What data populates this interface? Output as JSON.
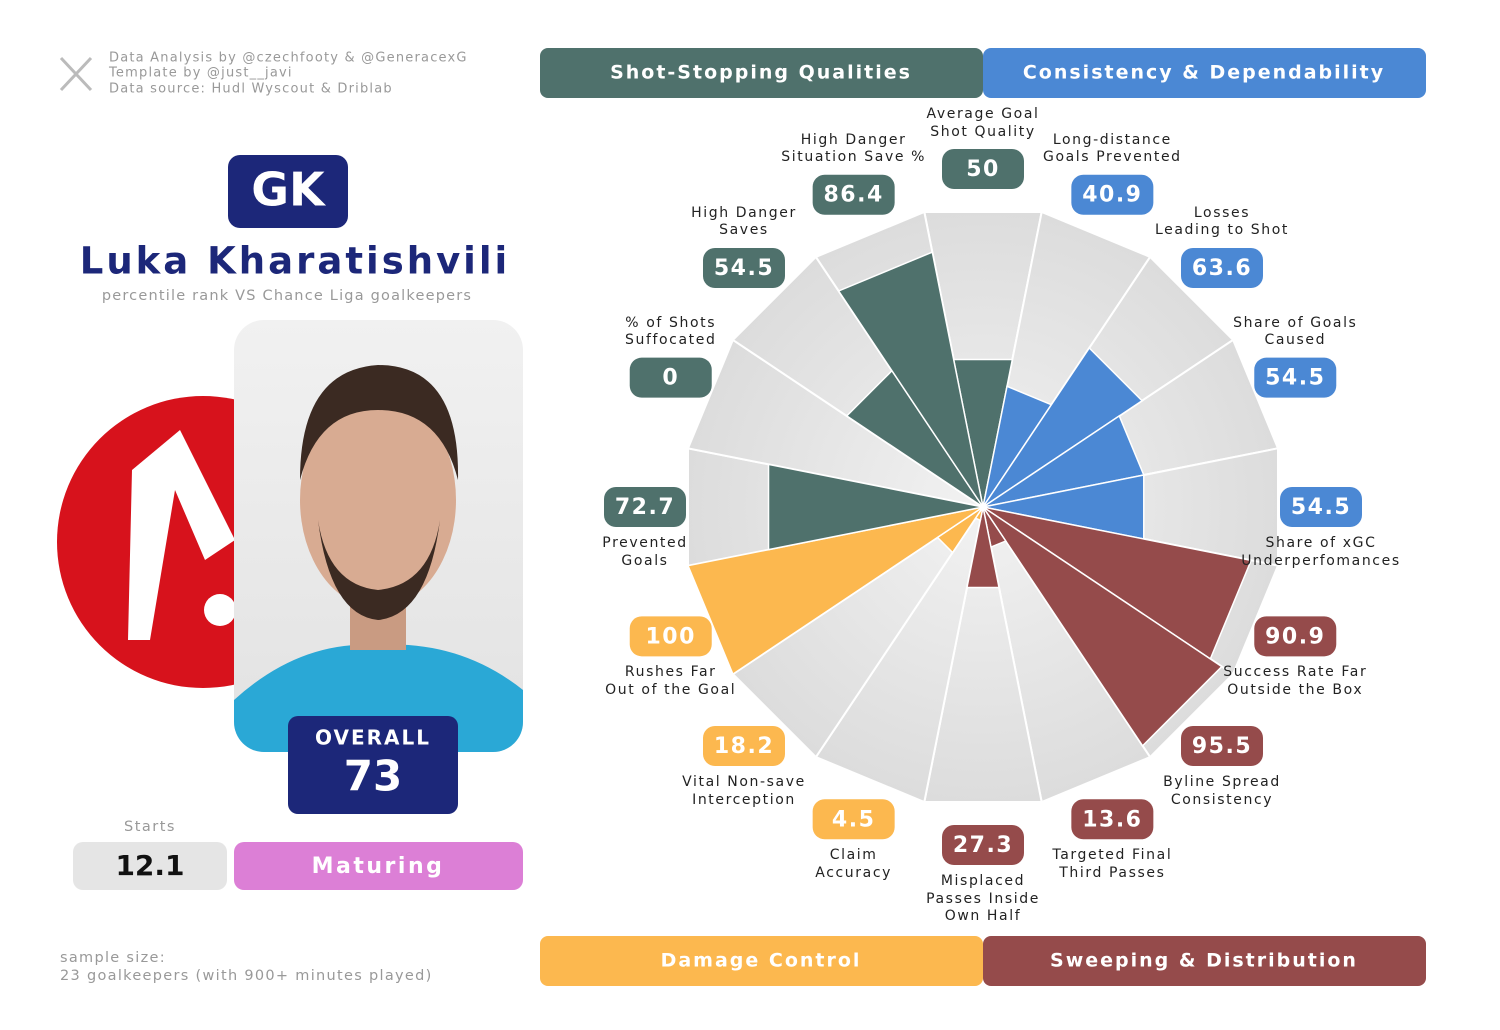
{
  "credits": {
    "lines": [
      "Data Analysis by @czechfooty & @GeneracexG",
      "Template by @just__javi",
      "Data source: Hudl Wyscout & Driblab"
    ]
  },
  "player": {
    "position": "GK",
    "name": "Luka Kharatishvili",
    "subtitle": "percentile rank VS Chance Liga goalkeepers",
    "overall_label": "OVERALL",
    "overall": 73,
    "starts_label": "Starts",
    "starts": 12.1,
    "stage": "Maturing"
  },
  "footer": {
    "lines": [
      "sample size:",
      "23 goalkeepers (with 900+ minutes played)"
    ]
  },
  "chart_data": {
    "type": "pizza",
    "groups": [
      {
        "name": "Shot-Stopping Qualities",
        "color": "#4f716c"
      },
      {
        "name": "Consistency & Dependability",
        "color": "#4b88d4"
      },
      {
        "name": "Damage Control",
        "color": "#fcb84f"
      },
      {
        "name": "Sweeping & Distribution",
        "color": "#954b4b"
      }
    ],
    "categories": [
      "Average Goal\nShot Quality",
      "Long-distance\nGoals Prevented",
      "Losses\nLeading to Shot",
      "Share of Goals\nCaused",
      "Share of xGC\nUnderperfomances",
      "Success Rate Far\nOutside the Box",
      "Byline Spread\nConsistency",
      "Targeted Final\nThird Passes",
      "Misplaced\nPasses Inside\nOwn Half",
      "Claim\nAccuracy",
      "Vital Non-save\nInterception",
      "Rushes Far\nOut of the Goal",
      "Prevented\nGoals",
      "% of Shots\nSuffocated",
      "High Danger\nSaves",
      "High Danger\nSituation Save %"
    ],
    "values": [
      50,
      40.9,
      63.6,
      54.5,
      54.5,
      90.9,
      95.5,
      13.6,
      27.3,
      4.5,
      18.2,
      100,
      72.7,
      0,
      54.5,
      86.4
    ],
    "colors": [
      "#4f716c",
      "#4b88d4",
      "#4b88d4",
      "#4b88d4",
      "#4b88d4",
      "#954b4b",
      "#954b4b",
      "#954b4b",
      "#954b4b",
      "#fcb84f",
      "#fcb84f",
      "#fcb84f",
      "#4f716c",
      "#4f716c",
      "#4f716c",
      "#4f716c"
    ],
    "ylim": [
      0,
      100
    ]
  }
}
